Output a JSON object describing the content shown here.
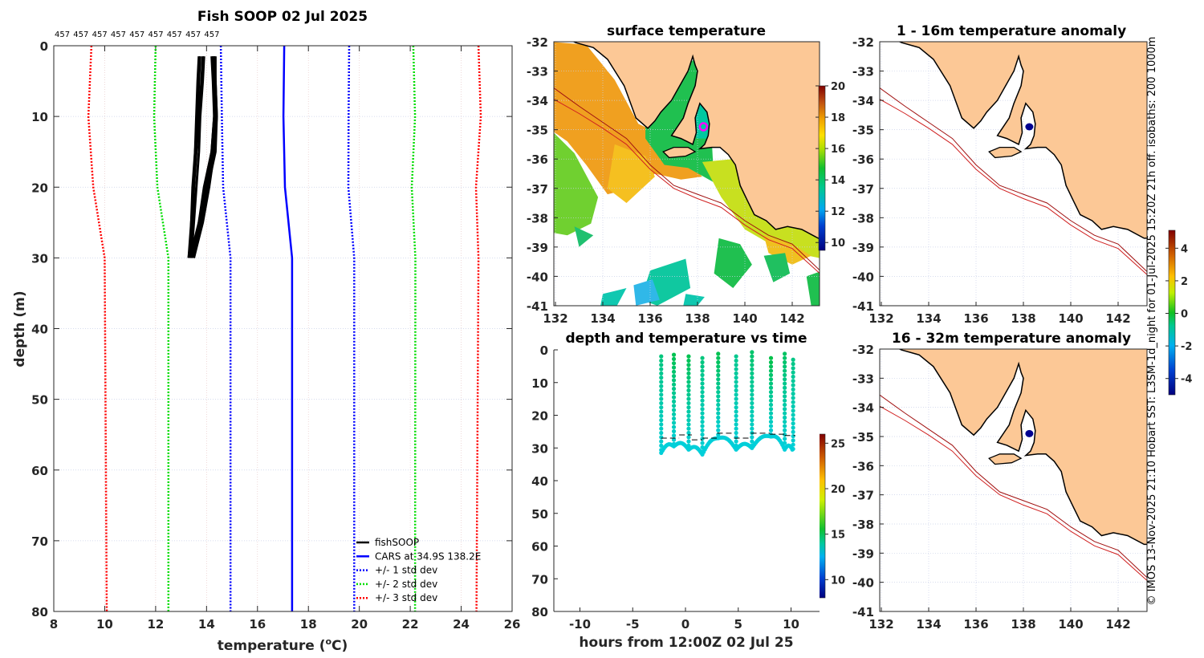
{
  "caption": "© IMOS 13-Nov-2025 21:10 Hobart SST: L3SM-1d_night for 01-Jul-2025 15:20Z 21h off. isobaths: 200  1000m",
  "chart_data": [
    {
      "id": "profile",
      "type": "line",
      "title": "Fish SOOP 02 Jul 2025",
      "xlabel": "temperature (",
      "xlabel_unit": "o",
      "xlabel_end": "C)",
      "ylabel": "depth (m)",
      "xlim": [
        8,
        26
      ],
      "ylim": [
        80,
        0
      ],
      "xticks": [
        8,
        10,
        12,
        14,
        16,
        18,
        20,
        22,
        24,
        26
      ],
      "yticks": [
        0,
        10,
        20,
        30,
        40,
        50,
        60,
        70,
        80
      ],
      "grid": true,
      "cast_labels": [
        "457",
        "457",
        "457",
        "457",
        "457",
        "457",
        "457",
        "457",
        "457"
      ],
      "legend_position": "bottom-right",
      "legend": [
        "fishSOOP",
        "CARS at 34.9S 138.2E",
        "+/- 1 std dev",
        "+/- 2 std dev",
        "+/- 3 std dev"
      ],
      "profile_depths": [
        1.5,
        5,
        10,
        15,
        20,
        25,
        30
      ],
      "fishsoop_profiles": [
        [
          13.85,
          13.8,
          13.7,
          13.6,
          13.5,
          13.45,
          13.3
        ],
        [
          13.75,
          13.7,
          13.65,
          13.55,
          13.5,
          13.4,
          13.35
        ],
        [
          13.9,
          13.85,
          13.75,
          13.7,
          13.6,
          13.5,
          13.4
        ],
        [
          13.7,
          13.65,
          13.6,
          13.55,
          13.45,
          13.4,
          13.3
        ],
        [
          14.3,
          14.3,
          14.35,
          14.25,
          14.0,
          13.8,
          13.5
        ],
        [
          14.35,
          14.35,
          14.4,
          14.3,
          14.1,
          13.85,
          13.5
        ],
        [
          14.25,
          14.3,
          14.3,
          14.2,
          13.95,
          13.7,
          13.45
        ],
        [
          14.3,
          14.35,
          14.4,
          14.35,
          14.05,
          13.75,
          13.4
        ],
        [
          14.2,
          14.25,
          14.3,
          14.2,
          13.9,
          13.7,
          13.35
        ]
      ],
      "clim_depths": [
        0,
        10,
        20,
        30,
        80
      ],
      "series": [
        {
          "name": "CARS",
          "color": "#0000ff",
          "style": "solid",
          "temps": [
            17.05,
            17.02,
            17.08,
            17.36,
            17.36
          ]
        },
        {
          "name": "-1 std",
          "color": "#0000ff",
          "style": "dotted",
          "temps": [
            14.56,
            14.6,
            14.65,
            14.94,
            14.94
          ]
        },
        {
          "name": "+1 std",
          "color": "#0000ff",
          "style": "dotted",
          "temps": [
            19.6,
            19.58,
            19.57,
            19.8,
            19.8
          ]
        },
        {
          "name": "-2 std",
          "color": "#00dd00",
          "style": "dotted",
          "temps": [
            12.0,
            11.94,
            12.07,
            12.5,
            12.5
          ]
        },
        {
          "name": "+2 std",
          "color": "#00dd00",
          "style": "dotted",
          "temps": [
            22.12,
            22.19,
            22.06,
            22.2,
            22.19
          ]
        },
        {
          "name": "-3 std",
          "color": "#ff0000",
          "style": "dotted",
          "temps": [
            9.48,
            9.36,
            9.55,
            10.0,
            10.08
          ]
        },
        {
          "name": "+3 std",
          "color": "#ff0000",
          "style": "dotted",
          "temps": [
            24.68,
            24.77,
            24.58,
            24.68,
            24.6
          ]
        }
      ]
    },
    {
      "id": "sst_map",
      "type": "heatmap",
      "title": "surface temperature",
      "xticks": [
        132,
        134,
        136,
        138,
        140,
        142
      ],
      "yticks": [
        -32,
        -33,
        -34,
        -35,
        -36,
        -37,
        -38,
        -39,
        -40,
        -41
      ],
      "colorbar": {
        "min": 9.5,
        "max": 20,
        "ticks": [
          10,
          12,
          14,
          16,
          18,
          20
        ]
      },
      "marker": {
        "lon": 138.25,
        "lat": -34.9,
        "color": "#ff00ff"
      }
    },
    {
      "id": "depth_time",
      "type": "scatter",
      "title": "depth and temperature vs time",
      "xlabel": "hours from 12:00Z 02 Jul 25",
      "xlim": [
        -12.5,
        12.7
      ],
      "ylim": [
        80,
        0
      ],
      "xticks": [
        -10,
        -5,
        0,
        5,
        10
      ],
      "yticks": [
        0,
        10,
        20,
        30,
        40,
        50,
        60,
        70,
        80
      ],
      "colorbar": {
        "min": 8,
        "max": 26,
        "ticks": [
          10,
          15,
          20,
          25
        ]
      },
      "casts": [
        {
          "hour": -2.3,
          "top": 2.0,
          "bottom": 31.0,
          "top_temp": 14.3
        },
        {
          "hour": -1.1,
          "top": 1.5,
          "bottom": 29.0,
          "top_temp": 14.8
        },
        {
          "hour": 0.3,
          "top": 2.0,
          "bottom": 30.0,
          "top_temp": 14.8
        },
        {
          "hour": 1.6,
          "top": 2.5,
          "bottom": 31.5,
          "top_temp": 14.3
        },
        {
          "hour": 3.1,
          "top": 1.2,
          "bottom": 26.5,
          "top_temp": 14.8
        },
        {
          "hour": 4.8,
          "top": 2.0,
          "bottom": 30.0,
          "top_temp": 14.1
        },
        {
          "hour": 6.3,
          "top": 0.7,
          "bottom": 29.5,
          "top_temp": 14.5
        },
        {
          "hour": 8.1,
          "top": 2.5,
          "bottom": 26.0,
          "top_temp": 14.9
        },
        {
          "hour": 9.4,
          "top": 1.2,
          "bottom": 30.0,
          "top_temp": 14.6
        },
        {
          "hour": 10.2,
          "top": 3.0,
          "bottom": 30.5,
          "top_temp": 14.2
        }
      ],
      "bottom_temp": 13.1,
      "dashed_line": [
        [
          -2.3,
          27
        ],
        [
          -0.6,
          27
        ],
        [
          -0.6,
          26
        ],
        [
          0.6,
          26
        ],
        [
          0.6,
          27.5
        ],
        [
          1.6,
          27.5
        ],
        [
          1.6,
          27
        ],
        [
          3.0,
          27
        ],
        [
          3.0,
          25.5
        ],
        [
          4.6,
          25.5
        ],
        [
          4.6,
          27
        ],
        [
          6.2,
          27
        ],
        [
          6.2,
          25.5
        ],
        [
          8.0,
          25.5
        ],
        [
          8.0,
          25.8
        ],
        [
          9.4,
          25.8
        ],
        [
          9.4,
          26.2
        ],
        [
          10.4,
          26.2
        ]
      ]
    },
    {
      "id": "anomaly_1_16",
      "type": "heatmap",
      "title": "1 - 16m temperature anomaly",
      "xticks": [
        132,
        134,
        136,
        138,
        140,
        142
      ],
      "yticks": [
        -32,
        -33,
        -34,
        -35,
        -36,
        -37,
        -38,
        -39,
        -40,
        -41
      ],
      "colorbar": {
        "min": -5,
        "max": 5.1,
        "ticks": [
          -4,
          -2,
          0,
          2,
          4
        ]
      },
      "marker": {
        "lon": 138.25,
        "lat": -34.9,
        "anomaly": -4.2
      }
    },
    {
      "id": "anomaly_16_32",
      "type": "heatmap",
      "title": "16 - 32m temperature anomaly",
      "xticks": [
        132,
        134,
        136,
        138,
        140,
        142
      ],
      "yticks": [
        -32,
        -33,
        -34,
        -35,
        -36,
        -37,
        -38,
        -39,
        -40,
        -41
      ],
      "marker": {
        "lon": 138.25,
        "lat": -34.9,
        "anomaly": -4.2
      }
    }
  ]
}
